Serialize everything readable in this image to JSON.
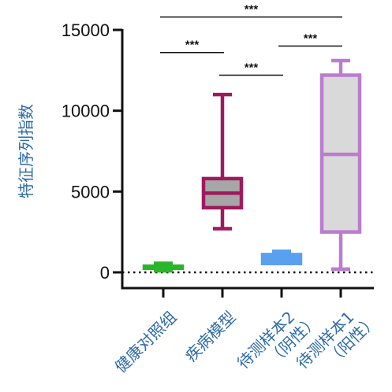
{
  "chart_data": {
    "type": "box",
    "title": "",
    "ylabel": "特征序列指数",
    "xlabel": "",
    "ylim": [
      0,
      15000
    ],
    "yticks": [
      0,
      5000,
      10000,
      15000
    ],
    "ytick_labels": [
      "0",
      "5000",
      "10000",
      "15000"
    ],
    "reference_line": {
      "y": 0,
      "style": "dotted"
    },
    "groups": [
      {
        "label": [
          "健康对照组"
        ],
        "color": "#2bb52b",
        "fill": "#2bb52b",
        "min": 100,
        "q1": 250,
        "median": 330,
        "q3": 380,
        "max": 560
      },
      {
        "label": [
          "疾病模型"
        ],
        "color": "#9e1a5e",
        "fill": "#a6a6a6",
        "min": 2700,
        "q1": 4000,
        "median": 4900,
        "q3": 5800,
        "max": 11000
      },
      {
        "label": [
          "待测样本2",
          "（阴性）"
        ],
        "color": "#5aa0ee",
        "fill": "#5aa0ee",
        "min": 550,
        "q1": 550,
        "median": 900,
        "q3": 1100,
        "max": 1300
      },
      {
        "label": [
          "待测样本1",
          "（阳性）"
        ],
        "color": "#bb7ccf",
        "fill": "#d9d9d9",
        "min": 200,
        "q1": 2500,
        "median": 7300,
        "q3": 12200,
        "max": 13100
      }
    ],
    "significance": [
      {
        "from": 0,
        "to": 3,
        "label": "***",
        "y": 15800
      },
      {
        "from": 0,
        "to": 1,
        "label": "***",
        "y": 13600
      },
      {
        "from": 2,
        "to": 3,
        "label": "***",
        "y": 14000
      },
      {
        "from": 1,
        "to": 2,
        "label": "***",
        "y": 12200
      }
    ]
  }
}
